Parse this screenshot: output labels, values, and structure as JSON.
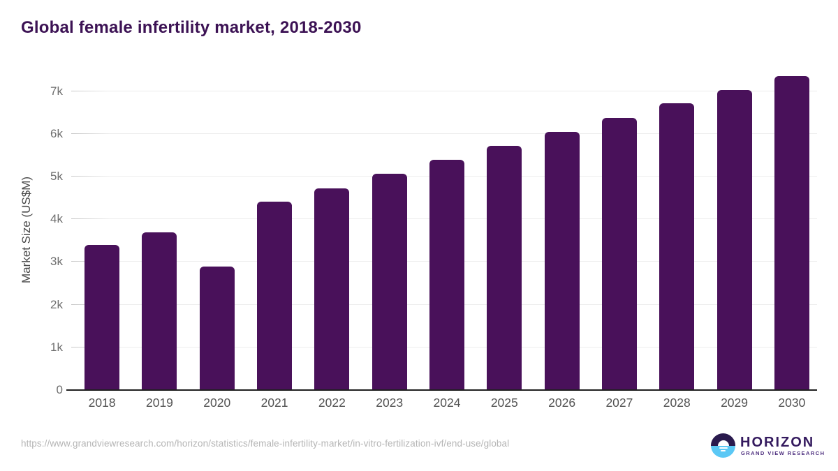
{
  "header": {
    "title": "Global female infertility market, 2018-2030"
  },
  "chart_data": {
    "type": "bar",
    "title": "Global female infertility market, 2018-2030",
    "categories": [
      "2018",
      "2019",
      "2020",
      "2021",
      "2022",
      "2023",
      "2024",
      "2025",
      "2026",
      "2027",
      "2028",
      "2029",
      "2030"
    ],
    "values": [
      3400,
      3700,
      2890,
      4410,
      4730,
      5060,
      5390,
      5720,
      6050,
      6380,
      6710,
      7030,
      7360
    ],
    "xlabel": "",
    "ylabel": "Market Size (US$M)",
    "ylim": [
      0,
      7500
    ],
    "ytick_values": [
      0,
      1000,
      2000,
      3000,
      4000,
      5000,
      6000,
      7000
    ],
    "ytick_labels": [
      "0",
      "1k",
      "2k",
      "3k",
      "4k",
      "5k",
      "6k",
      "7k"
    ],
    "grid": "horizontal",
    "legend": "none",
    "bar_color": "#49115a"
  },
  "colors": {
    "title": "#3c1254",
    "bar": "#49115a",
    "axis_line": "#1f1f1f",
    "gridline": "#ededed",
    "tick_text": "#6e6e6e",
    "logo_purple": "#2a1a4e",
    "logo_blue": "#5bc8f5"
  },
  "footer": {
    "source_url": "https://www.grandviewresearch.com/horizon/statistics/female-infertility-market/in-vitro-fertilization-ivf/end-use/global",
    "logo": {
      "brand": "HORIZON",
      "sub_brand": "GRAND VIEW RESEARCH"
    }
  }
}
